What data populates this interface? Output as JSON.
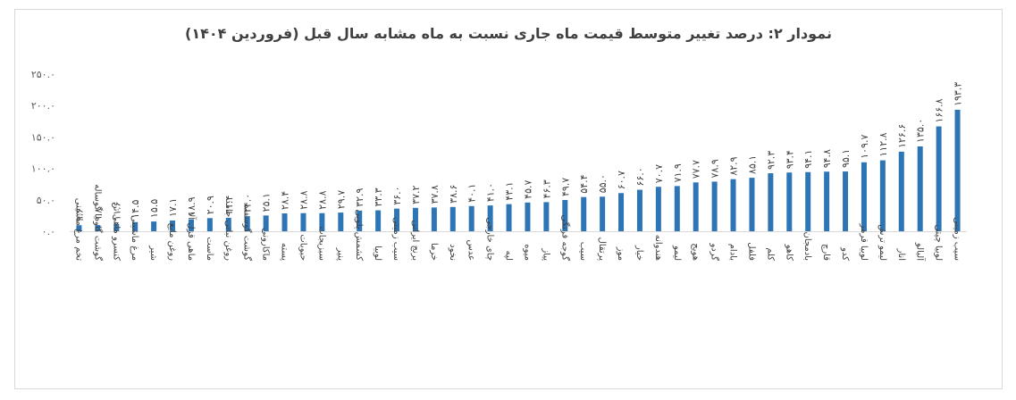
{
  "chart_data": {
    "type": "bar",
    "title": "نمودار ۲: درصد تغییر متوسط قیمت ماه جاری نسبت به ماه مشابه سال قبل (فروردین ۱۴۰۴)",
    "xlabel": "",
    "ylabel": "",
    "ylim": [
      0,
      250
    ],
    "yticks": [
      0,
      50,
      100,
      150,
      200,
      250
    ],
    "ytick_labels": [
      "۰.۰",
      "۵۰.۰",
      "۱۰۰.۰",
      "۱۵۰.۰",
      "۲۰۰.۰",
      "۲۵۰.۰"
    ],
    "grid": false,
    "bar_color": "#2e75b6",
    "categories": [
      "تخم مرغ ماشینی",
      "گوشت گاو یا گوساله",
      "کنسرو ماهی تن",
      "مرغ ماشینی",
      "شیر",
      "روغن مایع",
      "ماهی قزل آلا",
      "ماست",
      "روغن نباتی جامد",
      "گوشت گوسفند",
      "ماکارونی",
      "پسته",
      "حبوبات",
      "سبزیجات",
      "پنیر",
      "کشمش پلویی",
      "لوبیا",
      "سیب زمینی",
      "برنج ایرانی",
      "خرما",
      "نخود",
      "عدس",
      "چای خارجی",
      "لپه",
      "میوه",
      "پیاز",
      "گوجه فرنگی",
      "سیب",
      "پرتقال",
      "موز",
      "خیار",
      "هندوانه",
      "لیمو",
      "هویج",
      "گردو",
      "بادام",
      "فلفل",
      "کلم",
      "کاهو",
      "بادمجان",
      "قارچ",
      "کدو",
      "لوبیا قرمز",
      "لیمو ترش",
      "انار",
      "آلبالو",
      "لوبیا چیتی",
      "سیب زمینی"
    ],
    "values": [
      9.6,
      9.8,
      11.6,
      14.5,
      15.5,
      17.1,
      18.9,
      20.9,
      21.4,
      24.0,
      25.1,
      28.4,
      28.8,
      28.8,
      29.7,
      32.9,
      33.3,
      36.0,
      37.2,
      37.8,
      38.6,
      40.1,
      41.0,
      43.1,
      45.7,
      46.3,
      49.7,
      54.4,
      55.0,
      60.7,
      66.0,
      70.7,
      71.9,
      77.7,
      78.9,
      82.9,
      85.1,
      92.3,
      93.4,
      94.1,
      94.8,
      95.1,
      109.7,
      112.8,
      126.6,
      135.0,
      166.8,
      193.3
    ],
    "data_labels": [
      "۹.۶",
      "۹.۸",
      "۱۱.۶",
      "۱۴.۵",
      "۱۵.۵",
      "۱۷.۱",
      "۱۸.۹",
      "۲۰.۹",
      "۲۱.۴",
      "۲۴.۰",
      "۲۵.۱",
      "۲۸.۴",
      "۲۸.۸",
      "۲۸.۸",
      "۲۹.۷",
      "۳۲.۹",
      "۳۳.۳",
      "۳۶.۰",
      "۳۷.۲",
      "۳۷.۸",
      "۳۸.۶",
      "۴۰.۱",
      "۴۱.۰",
      "۴۳.۱",
      "۴۵.۷",
      "۴۶.۳",
      "۴۹.۷",
      "۵۴.۴",
      "۵۵.۰",
      "۶۰.۷",
      "۶۶.۰",
      "۷۰.۷",
      "۷۱.۹",
      "۷۷.۷",
      "۷۸.۹",
      "۸۲.۹",
      "۸۵.۱",
      "۹۲.۳",
      "۹۳.۴",
      "۹۴.۱",
      "۹۴.۸",
      "۹۵.۱",
      "۱۰۹.۷",
      "۱۱۲.۸",
      "۱۲۶.۶",
      "۱۳۵.۰",
      "۱۶۶.۸",
      "۱۹۳.۳"
    ]
  }
}
